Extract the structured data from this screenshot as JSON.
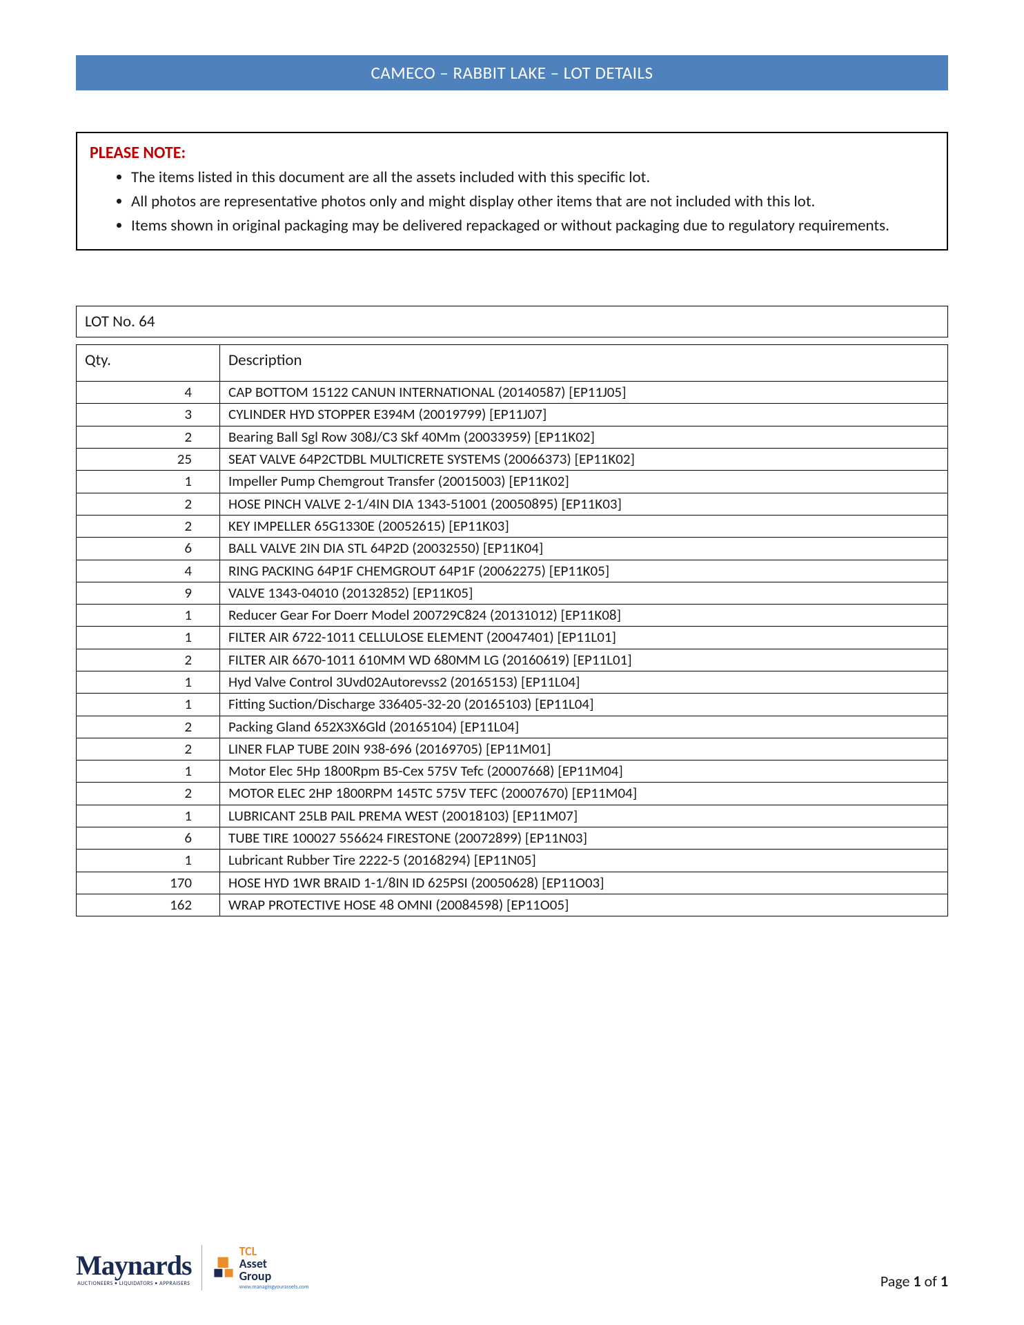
{
  "header": {
    "title": "CAMECO – RABBIT LAKE – LOT DETAILS",
    "bar_color": "#4f81bd",
    "text_color": "#ffffff"
  },
  "note": {
    "title": "PLEASE NOTE:",
    "title_color": "#c00000",
    "items": [
      "The items listed in this document are all the assets included with this specific lot.",
      "All photos are representative photos only and might display other items that are not included with this lot.",
      "Items shown in original packaging may be delivered repackaged or without packaging due to regulatory requirements."
    ]
  },
  "lot": {
    "number_label": "LOT No. 64",
    "columns": {
      "qty": "Qty.",
      "description": "Description"
    },
    "rows": [
      {
        "qty": "4",
        "desc": "CAP BOTTOM 15122 CANUN INTERNATIONAL (20140587) [EP11J05]"
      },
      {
        "qty": "3",
        "desc": "CYLINDER HYD STOPPER E394M (20019799) [EP11J07]"
      },
      {
        "qty": "2",
        "desc": "Bearing Ball Sgl Row 308J/C3 Skf 40Mm (20033959) [EP11K02]"
      },
      {
        "qty": "25",
        "desc": "SEAT VALVE 64P2CTDBL MULTICRETE SYSTEMS (20066373) [EP11K02]"
      },
      {
        "qty": "1",
        "desc": "Impeller Pump Chemgrout Transfer (20015003) [EP11K02]"
      },
      {
        "qty": "2",
        "desc": "HOSE PINCH VALVE 2-1/4IN DIA 1343-51001 (20050895) [EP11K03]"
      },
      {
        "qty": "2",
        "desc": "KEY IMPELLER 65G1330E (20052615) [EP11K03]"
      },
      {
        "qty": "6",
        "desc": "BALL VALVE 2IN DIA STL 64P2D (20032550) [EP11K04]"
      },
      {
        "qty": "4",
        "desc": "RING PACKING 64P1F CHEMGROUT 64P1F (20062275) [EP11K05]"
      },
      {
        "qty": "9",
        "desc": "VALVE 1343-04010 (20132852) [EP11K05]"
      },
      {
        "qty": "1",
        "desc": "Reducer Gear For Doerr Model 200729C824 (20131012) [EP11K08]"
      },
      {
        "qty": "1",
        "desc": "FILTER AIR 6722-1011 CELLULOSE ELEMENT (20047401) [EP11L01]"
      },
      {
        "qty": "2",
        "desc": "FILTER AIR 6670-1011 610MM WD 680MM LG (20160619) [EP11L01]"
      },
      {
        "qty": "1",
        "desc": "Hyd Valve Control 3Uvd02Autorevss2 (20165153) [EP11L04]"
      },
      {
        "qty": "1",
        "desc": "Fitting Suction/Discharge 336405-32-20 (20165103) [EP11L04]"
      },
      {
        "qty": "2",
        "desc": "Packing Gland 652X3X6Gld (20165104) [EP11L04]"
      },
      {
        "qty": "2",
        "desc": "LINER FLAP TUBE 20IN 938-696 (20169705) [EP11M01]"
      },
      {
        "qty": "1",
        "desc": "Motor Elec 5Hp 1800Rpm B5-Cex 575V Tefc (20007668) [EP11M04]"
      },
      {
        "qty": "2",
        "desc": "MOTOR ELEC 2HP 1800RPM 145TC 575V TEFC (20007670) [EP11M04]"
      },
      {
        "qty": "1",
        "desc": "LUBRICANT 25LB PAIL PREMA WEST (20018103) [EP11M07]"
      },
      {
        "qty": "6",
        "desc": "TUBE TIRE 100027 556624 FIRESTONE (20072899) [EP11N03]"
      },
      {
        "qty": "1",
        "desc": "Lubricant Rubber Tire 2222-5 (20168294) [EP11N05]"
      },
      {
        "qty": "170",
        "desc": "HOSE HYD 1WR BRAID 1-1/8IN ID 625PSI (20050628) [EP11O03]"
      },
      {
        "qty": "162",
        "desc": "WRAP PROTECTIVE HOSE 48 OMNI (20084598) [EP11O05]"
      }
    ]
  },
  "footer": {
    "maynards": {
      "wordmark": "Maynards",
      "tagline": "AUCTIONEERS • LIQUIDATORS • APPRAISERS",
      "color": "#1a2a52"
    },
    "tcl": {
      "line1": "TCL",
      "line2": "Asset",
      "line3": "Group",
      "subtext": "www.managingyourassets.com",
      "icon_colors": {
        "top": "#e98c2c",
        "bottom": "#1a2a52"
      }
    },
    "page_label_prefix": "Page ",
    "page_current": "1",
    "page_of": " of ",
    "page_total": "1"
  }
}
